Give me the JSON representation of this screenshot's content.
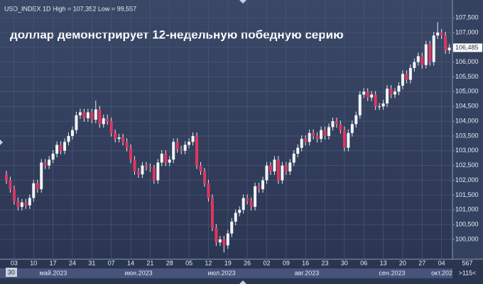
{
  "chart_data": {
    "type": "candlestick",
    "header": "USD_INDEX 1D High = 107,352 Low = 99,557",
    "title": "доллар демонстрирует 12-недельную победную серию",
    "price_label": "106,485",
    "up_color": "#f2f4f8",
    "down_color": "#e0365f",
    "grid": true,
    "ylim": [
      99330,
      108100
    ],
    "yticks": [
      {
        "value": 100000,
        "label": "100,000"
      },
      {
        "value": 100500,
        "label": "100,500"
      },
      {
        "value": 101000,
        "label": "101,000"
      },
      {
        "value": 101500,
        "label": "101,500"
      },
      {
        "value": 102000,
        "label": "102,000"
      },
      {
        "value": 102500,
        "label": "102,500"
      },
      {
        "value": 103000,
        "label": "103,000"
      },
      {
        "value": 103500,
        "label": "103,500"
      },
      {
        "value": 104000,
        "label": "104,000"
      },
      {
        "value": 104500,
        "label": "104,500"
      },
      {
        "value": 105000,
        "label": "105,000"
      },
      {
        "value": 105500,
        "label": "105,500"
      },
      {
        "value": 106000,
        "label": "106,000"
      },
      {
        "value": 106500,
        "label": "106,500"
      },
      {
        "value": 107000,
        "label": "107,000"
      },
      {
        "value": 107500,
        "label": "107,500"
      }
    ],
    "categories": [
      null,
      null,
      "03",
      null,
      null,
      null,
      null,
      "10",
      null,
      null,
      null,
      null,
      "17",
      null,
      null,
      null,
      null,
      "24",
      null,
      null,
      null,
      null,
      "31",
      null,
      null,
      null,
      null,
      "07",
      null,
      null,
      null,
      null,
      "14",
      null,
      null,
      null,
      null,
      "21",
      null,
      null,
      null,
      null,
      "28",
      null,
      null,
      null,
      null,
      "05",
      null,
      null,
      null,
      null,
      "12",
      null,
      null,
      null,
      null,
      "19",
      null,
      null,
      null,
      null,
      "26",
      null,
      null,
      null,
      null,
      "02",
      null,
      null,
      null,
      null,
      "09",
      null,
      null,
      null,
      null,
      "16",
      null,
      null,
      null,
      null,
      "23",
      null,
      null,
      null,
      null,
      "30",
      null,
      null,
      null,
      null,
      "06",
      null,
      null,
      null,
      null,
      "13",
      null,
      null,
      null,
      null,
      "20",
      null,
      null,
      null,
      null,
      "27",
      null,
      null,
      null,
      null,
      "04",
      null,
      null
    ],
    "months": [
      "май.2023",
      "июн.2023",
      "июл.2023",
      "авг.2023",
      "сен.2023",
      "окт.202"
    ],
    "corner_left": "30",
    "corner_right": "567",
    "corner_right2": ">115<",
    "open": [
      102200,
      102000,
      101700,
      101300,
      101100,
      101250,
      101150,
      101400,
      101900,
      101700,
      102600,
      102500,
      102700,
      102900,
      103200,
      103000,
      103300,
      103500,
      103700,
      104200,
      104300,
      104100,
      104300,
      104050,
      104400,
      103900,
      104100,
      104000,
      103600,
      103400,
      103450,
      103300,
      103100,
      102700,
      102300,
      102200,
      102500,
      102450,
      102400,
      102000,
      102600,
      102900,
      102600,
      102700,
      103300,
      103050,
      103000,
      103200,
      103300,
      103500,
      102500,
      102300,
      101900,
      101400,
      100400,
      99900,
      100000,
      99800,
      100200,
      100600,
      100900,
      101000,
      101400,
      101300,
      101100,
      101800,
      101700,
      102000,
      102500,
      102300,
      102700,
      102000,
      102500,
      102300,
      102600,
      102900,
      103100,
      103400,
      103300,
      103600,
      103500,
      103400,
      103700,
      103500,
      103800,
      104000,
      103900,
      103700,
      103100,
      103600,
      103900,
      104200,
      104900,
      105000,
      104800,
      104900,
      104500,
      104500,
      104600,
      105100,
      104900,
      105000,
      105200,
      105600,
      105400,
      105800,
      106000,
      106200,
      105900,
      106600,
      106000,
      106900,
      107000,
      106900,
      106400
    ],
    "high": [
      102320,
      102120,
      101820,
      101420,
      101370,
      101370,
      101520,
      102020,
      102020,
      102720,
      102720,
      102820,
      103020,
      103320,
      103320,
      103420,
      103620,
      103820,
      104320,
      104420,
      104420,
      104420,
      104420,
      104700,
      104520,
      104220,
      104220,
      104120,
      103720,
      103570,
      103570,
      103420,
      103220,
      102820,
      102420,
      102620,
      102620,
      102570,
      102520,
      102720,
      103020,
      103020,
      102820,
      103420,
      103420,
      103170,
      103320,
      103420,
      103620,
      103620,
      102620,
      102420,
      102020,
      101520,
      100520,
      100120,
      100120,
      100320,
      100720,
      101020,
      101120,
      101520,
      101520,
      101420,
      101920,
      101920,
      102120,
      102620,
      102620,
      102820,
      102820,
      102620,
      102620,
      102720,
      103020,
      103220,
      103520,
      103520,
      103720,
      103720,
      103620,
      103820,
      103820,
      103920,
      104120,
      104120,
      104020,
      103820,
      103720,
      104020,
      104320,
      105020,
      105120,
      105120,
      105020,
      105020,
      104620,
      104720,
      105220,
      105220,
      105120,
      105320,
      105720,
      105720,
      105920,
      106120,
      106320,
      106320,
      106720,
      106720,
      107020,
      107352,
      107120,
      107020,
      106605
    ],
    "low": [
      101880,
      101580,
      101180,
      100980,
      100980,
      101030,
      101030,
      101280,
      101580,
      101580,
      102380,
      102380,
      102580,
      102780,
      102880,
      102880,
      103180,
      103380,
      103580,
      104080,
      103980,
      103980,
      103930,
      103930,
      103780,
      103780,
      103880,
      103480,
      103280,
      103280,
      103180,
      102980,
      102580,
      102180,
      102080,
      102080,
      102330,
      102280,
      101880,
      101880,
      102480,
      102480,
      102480,
      102580,
      102930,
      102880,
      102880,
      103080,
      103180,
      102380,
      102180,
      101780,
      101280,
      100280,
      99780,
      99780,
      99557,
      99680,
      100080,
      100480,
      100780,
      100880,
      101180,
      100980,
      100980,
      101580,
      101580,
      101880,
      102180,
      102180,
      101880,
      101880,
      102180,
      102180,
      102480,
      102780,
      102980,
      103180,
      103180,
      103380,
      103280,
      103280,
      103380,
      103380,
      103680,
      103780,
      103580,
      102980,
      102980,
      103480,
      103780,
      104080,
      104780,
      104680,
      104680,
      104380,
      104380,
      104380,
      104480,
      104780,
      104780,
      104880,
      105080,
      105280,
      105280,
      105680,
      105880,
      105780,
      105780,
      105880,
      105880,
      106780,
      106780,
      106280,
      106280
    ],
    "close": [
      102000,
      101700,
      101300,
      101100,
      101250,
      101150,
      101400,
      101900,
      101700,
      102600,
      102500,
      102700,
      102900,
      103200,
      103000,
      103300,
      103500,
      103700,
      104200,
      104300,
      104100,
      104300,
      104050,
      104400,
      103900,
      104100,
      104000,
      103600,
      103400,
      103450,
      103300,
      103100,
      102700,
      102300,
      102200,
      102500,
      102450,
      102400,
      102000,
      102600,
      102900,
      102600,
      102700,
      103300,
      103050,
      103000,
      103200,
      103300,
      103500,
      102500,
      102300,
      101900,
      101400,
      100400,
      99900,
      100000,
      99800,
      100200,
      100600,
      100900,
      101000,
      101400,
      101300,
      101100,
      101800,
      101700,
      102000,
      102500,
      102300,
      102700,
      102000,
      102500,
      102300,
      102600,
      102900,
      103100,
      103400,
      103300,
      103600,
      103500,
      103400,
      103700,
      103500,
      103800,
      104000,
      103900,
      103700,
      103100,
      103600,
      103900,
      104200,
      104900,
      105000,
      104800,
      104900,
      104500,
      104500,
      104600,
      105100,
      104900,
      105000,
      105200,
      105600,
      105400,
      105800,
      106000,
      106200,
      105900,
      106600,
      106000,
      106900,
      107000,
      106900,
      106400,
      106485
    ]
  }
}
